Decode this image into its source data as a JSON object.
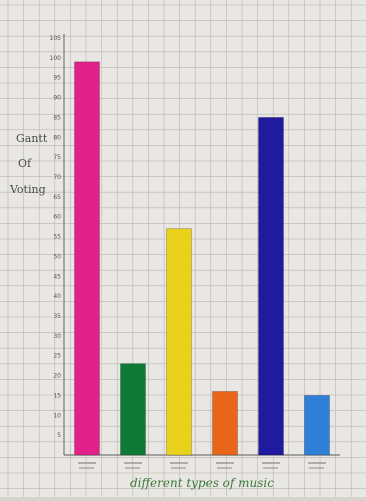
{
  "chart_data": {
    "type": "bar",
    "title": "",
    "ylabel_lines": [
      "Gantt",
      "Of",
      "Voting"
    ],
    "xlabel": "different types of music",
    "y_ticks": [
      5,
      10,
      15,
      20,
      25,
      30,
      35,
      40,
      45,
      50,
      55,
      60,
      65,
      70,
      75,
      80,
      85,
      90,
      95,
      100,
      105
    ],
    "ylim": [
      0,
      105
    ],
    "categories": [
      "",
      "",
      "",
      "",
      "",
      ""
    ],
    "series": [
      {
        "values": [
          99,
          23,
          57,
          16,
          85,
          15
        ],
        "colors": [
          "#e0218a",
          "#0e7a36",
          "#e9d21c",
          "#e8651a",
          "#1f1aa0",
          "#2f7fd8"
        ]
      }
    ],
    "grid": true,
    "legend": "none"
  }
}
